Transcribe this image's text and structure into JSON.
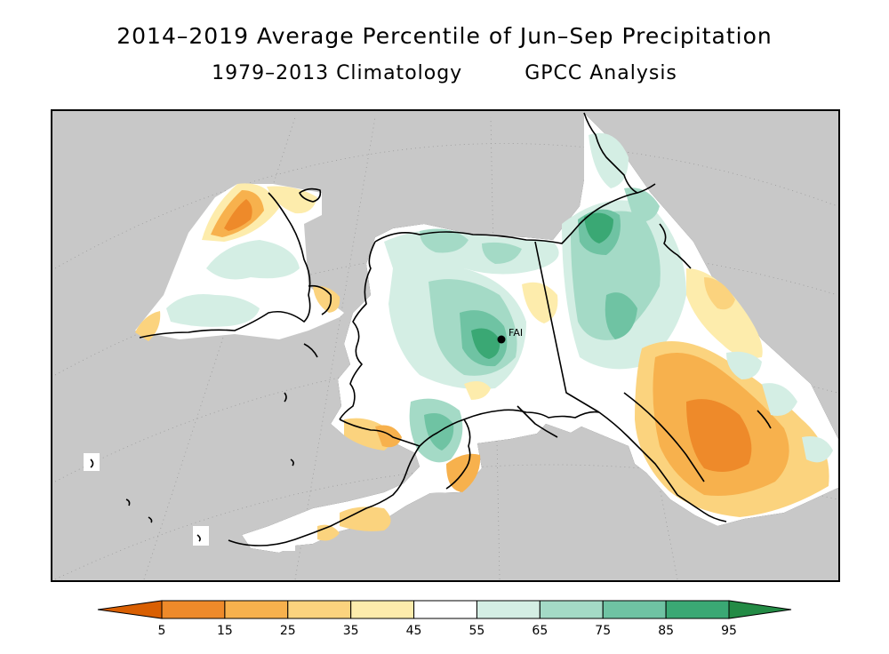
{
  "title": {
    "main": "2014–2019 Average Percentile of Jun–Sep Precipitation",
    "sub_left": "1979–2013 Climatology",
    "sub_right": "GPCC Analysis"
  },
  "map": {
    "background_color": "#c8c8c8",
    "coastline_color": "#000000",
    "station": {
      "label": "FAI"
    }
  },
  "legend": {
    "ticks": [
      "5",
      "15",
      "25",
      "35",
      "45",
      "55",
      "65",
      "75",
      "85",
      "95"
    ],
    "colors": [
      "#d95f02",
      "#ee8a2a",
      "#f7b14d",
      "#fbd37e",
      "#fdecac",
      "#ffffff",
      "#d4eee4",
      "#a4dac6",
      "#6fc3a3",
      "#3aa874",
      "#238b45"
    ],
    "extend": "both"
  }
}
